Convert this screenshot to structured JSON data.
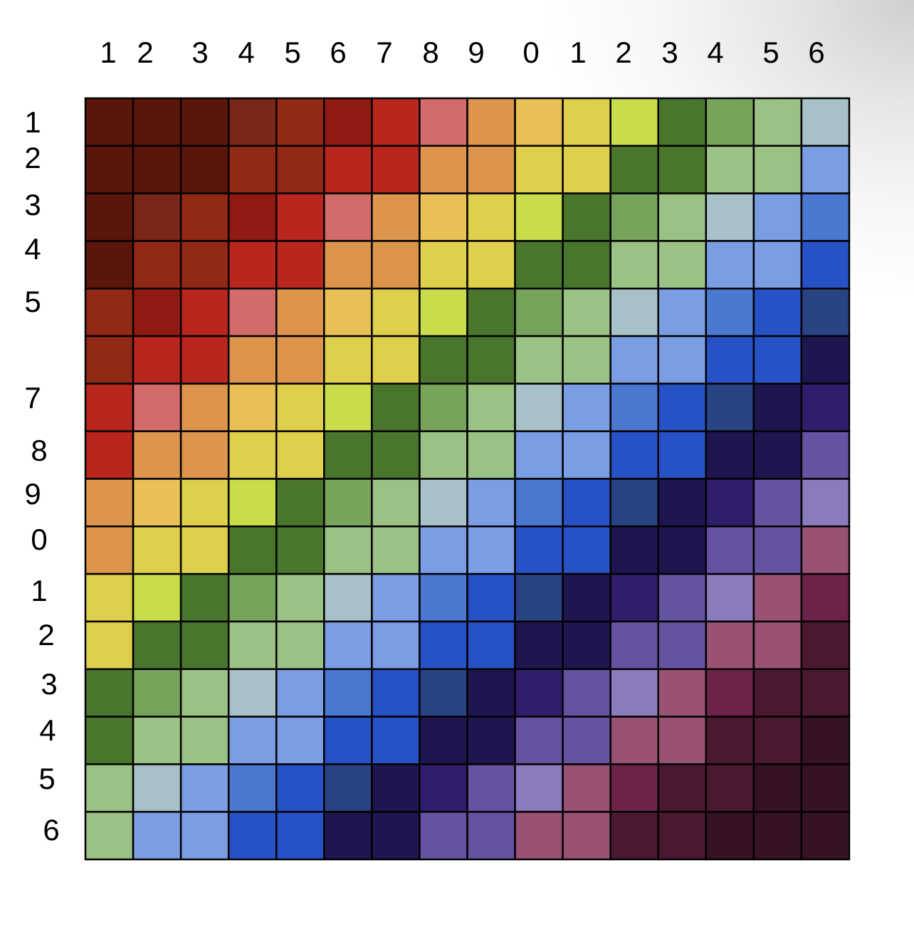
{
  "chart_data": {
    "type": "heatmap",
    "x_tick_labels": [
      "1",
      "2",
      "3",
      "4",
      "5",
      "6",
      "7",
      "8",
      "9",
      "0",
      "1",
      "2",
      "3",
      "4",
      "5",
      "6"
    ],
    "y_tick_labels": [
      "1",
      "2",
      "3",
      "4",
      "5",
      "",
      "7",
      "8",
      "9",
      "0",
      "1",
      "2",
      "3",
      "4",
      "5",
      "6"
    ],
    "grid": true,
    "color_levels": [
      "#5b160b",
      "#7a2719",
      "#922916",
      "#8f1a12",
      "#b9261e",
      "#d26b6a",
      "#dd954d",
      "#e8c055",
      "#dfd04b",
      "#c9dd4b",
      "#4a752d",
      "#77a35a",
      "#9bc285",
      "#a8c1c8",
      "#7a9de4",
      "#4a77cf",
      "#2752c6",
      "#284485",
      "#1f1650",
      "#301d6e",
      "#6652a2",
      "#8a7bbd",
      "#9a5274",
      "#6c2249",
      "#4a1931",
      "#351323"
    ],
    "values": [
      [
        0,
        0,
        0,
        1,
        2,
        3,
        4,
        5,
        6,
        7,
        8,
        9,
        10,
        11,
        12,
        13
      ],
      [
        0,
        0,
        0,
        2,
        2,
        4,
        4,
        6,
        6,
        8,
        8,
        10,
        10,
        12,
        12,
        14
      ],
      [
        0,
        1,
        2,
        3,
        4,
        5,
        6,
        7,
        8,
        9,
        10,
        11,
        12,
        13,
        14,
        15
      ],
      [
        0,
        2,
        2,
        4,
        4,
        6,
        6,
        8,
        8,
        10,
        10,
        12,
        12,
        14,
        14,
        16
      ],
      [
        2,
        3,
        4,
        5,
        6,
        7,
        8,
        9,
        10,
        11,
        12,
        13,
        14,
        15,
        16,
        17
      ],
      [
        2,
        4,
        4,
        6,
        6,
        8,
        8,
        10,
        10,
        12,
        12,
        14,
        14,
        16,
        16,
        18
      ],
      [
        4,
        5,
        6,
        7,
        8,
        9,
        10,
        11,
        12,
        13,
        14,
        15,
        16,
        17,
        18,
        19
      ],
      [
        4,
        6,
        6,
        8,
        8,
        10,
        10,
        12,
        12,
        14,
        14,
        16,
        16,
        18,
        18,
        20
      ],
      [
        6,
        7,
        8,
        9,
        10,
        11,
        12,
        13,
        14,
        15,
        16,
        17,
        18,
        19,
        20,
        21
      ],
      [
        6,
        8,
        8,
        10,
        10,
        12,
        12,
        14,
        14,
        16,
        16,
        18,
        18,
        20,
        20,
        22
      ],
      [
        8,
        9,
        10,
        11,
        12,
        13,
        14,
        15,
        16,
        17,
        18,
        19,
        20,
        21,
        22,
        23
      ],
      [
        8,
        10,
        10,
        12,
        12,
        14,
        14,
        16,
        16,
        18,
        18,
        20,
        20,
        22,
        22,
        24
      ],
      [
        10,
        11,
        12,
        13,
        14,
        15,
        16,
        17,
        18,
        19,
        20,
        21,
        22,
        23,
        24,
        24
      ],
      [
        10,
        12,
        12,
        14,
        14,
        16,
        16,
        18,
        18,
        20,
        20,
        22,
        22,
        24,
        24,
        25
      ],
      [
        12,
        13,
        14,
        15,
        16,
        17,
        18,
        19,
        20,
        21,
        22,
        23,
        24,
        24,
        25,
        25
      ],
      [
        12,
        14,
        14,
        16,
        16,
        18,
        18,
        20,
        20,
        22,
        22,
        24,
        24,
        25,
        25,
        25
      ]
    ]
  }
}
